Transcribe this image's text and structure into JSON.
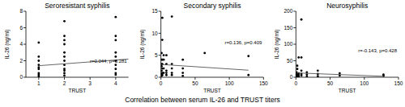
{
  "caption": "Correlation between serum IL-26 and TRUST titers",
  "chart_data": [
    {
      "type": "scatter",
      "title": "Seroresistant syphilis",
      "x_label": "TRUST",
      "y_label": "IL-26 (ng/ml)",
      "annotation": "r=0.044, p=0.281",
      "xlim": [
        0.5,
        4.5
      ],
      "xticks": [
        1,
        2,
        3,
        4
      ],
      "ylim": [
        0,
        8
      ],
      "yticks": [
        0,
        2,
        4,
        6,
        8
      ],
      "series": [
        {
          "type": "scatter",
          "marker": "circle",
          "color": "#000000",
          "x": [
            1,
            1,
            1,
            1,
            1,
            1,
            1,
            1,
            1,
            2,
            2,
            2,
            2,
            2,
            2,
            2,
            2,
            2,
            2,
            2,
            2,
            4,
            4,
            4,
            4,
            4,
            4,
            4,
            4,
            4,
            4
          ],
          "values": [
            0.1,
            0.3,
            0.5,
            1,
            1.2,
            1.5,
            2,
            2.5,
            4.2,
            0.2,
            0.5,
            0.8,
            1,
            1.5,
            2,
            2.5,
            3,
            4,
            4.5,
            5,
            6.8,
            0.3,
            0.5,
            1,
            1.5,
            2,
            2.5,
            3,
            4.5,
            5,
            7.3
          ]
        },
        {
          "type": "line",
          "line_style": "solid",
          "color": "#555555",
          "x": [
            1,
            4.5
          ],
          "values": [
            1.4,
            2.2
          ]
        }
      ]
    },
    {
      "type": "scatter",
      "title": "Secondary syphilis",
      "x_label": "TRUST",
      "y_label": "IL-26 (ng/ml)",
      "annotation": "r=0.136, p=0.409",
      "xlim": [
        0,
        150
      ],
      "xticks": [
        0,
        50,
        100,
        150
      ],
      "ylim": [
        0,
        15
      ],
      "yticks": [
        0,
        5,
        10,
        15
      ],
      "series": [
        {
          "type": "scatter",
          "marker": "circle",
          "color": "#000000",
          "x": [
            1,
            1,
            1,
            1,
            1,
            1,
            1,
            2,
            2,
            2,
            2,
            2,
            2,
            2,
            4,
            4,
            4,
            4,
            8,
            8,
            8,
            8,
            8,
            16,
            16,
            16,
            16,
            16,
            32,
            32,
            32,
            32,
            64,
            128,
            128
          ],
          "values": [
            0.3,
            0.8,
            1.5,
            2.5,
            3,
            4,
            5.5,
            0.5,
            1,
            2,
            3,
            4,
            8.5,
            13.5,
            1,
            2,
            4,
            5,
            0.5,
            1,
            1.5,
            3,
            5,
            0.5,
            1,
            2,
            3,
            13.8,
            0.3,
            1,
            2,
            4,
            5.5,
            0.5,
            4.8
          ]
        },
        {
          "type": "line",
          "line_style": "solid",
          "color": "#555555",
          "x": [
            1,
            128
          ],
          "values": [
            2.9,
            1.6
          ]
        }
      ]
    },
    {
      "type": "scatter",
      "title": "Neurosyphilis",
      "x_label": "TRUST",
      "y_label": "IL-26 (ng/ml)",
      "annotation": "r=-0.143, p=0.428",
      "xlim": [
        0,
        150
      ],
      "xticks": [
        0,
        50,
        100,
        150
      ],
      "ylim": [
        0,
        200
      ],
      "yticks": [
        0,
        50,
        100,
        150,
        200
      ],
      "series": [
        {
          "type": "scatter",
          "marker": "circle",
          "color": "#000000",
          "x": [
            1,
            1,
            1,
            1,
            1,
            2,
            2,
            2,
            2,
            2,
            4,
            4,
            4,
            4,
            8,
            8,
            8,
            8,
            8,
            16,
            16,
            16,
            32,
            32,
            32,
            64,
            64,
            128,
            128
          ],
          "values": [
            2,
            5,
            8,
            10,
            15,
            3,
            6,
            10,
            25,
            35,
            3,
            8,
            12,
            60,
            5,
            10,
            20,
            60,
            175,
            2,
            8,
            15,
            3,
            10,
            20,
            5,
            12,
            4,
            8
          ]
        },
        {
          "type": "line",
          "line_style": "solid",
          "color": "#555555",
          "x": [
            1,
            128
          ],
          "values": [
            13,
            3
          ]
        }
      ]
    }
  ]
}
